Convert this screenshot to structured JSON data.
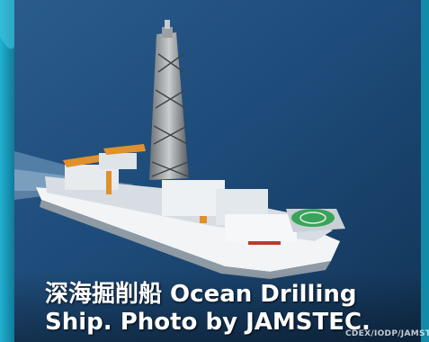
{
  "photo": {
    "subject": "ocean-drilling-ship",
    "colors": {
      "sea": "#1d4a78",
      "hull": "#e9eef2",
      "accent": "#e0902c",
      "helipad": "#3aa35a",
      "border": "#1aa9c8"
    }
  },
  "caption": {
    "line1": "深海掘削船  Ocean Drilling",
    "line2": "Ship. Photo by JAMSTEC."
  },
  "watermark": "CDEX/IODP/JAMSTEC"
}
